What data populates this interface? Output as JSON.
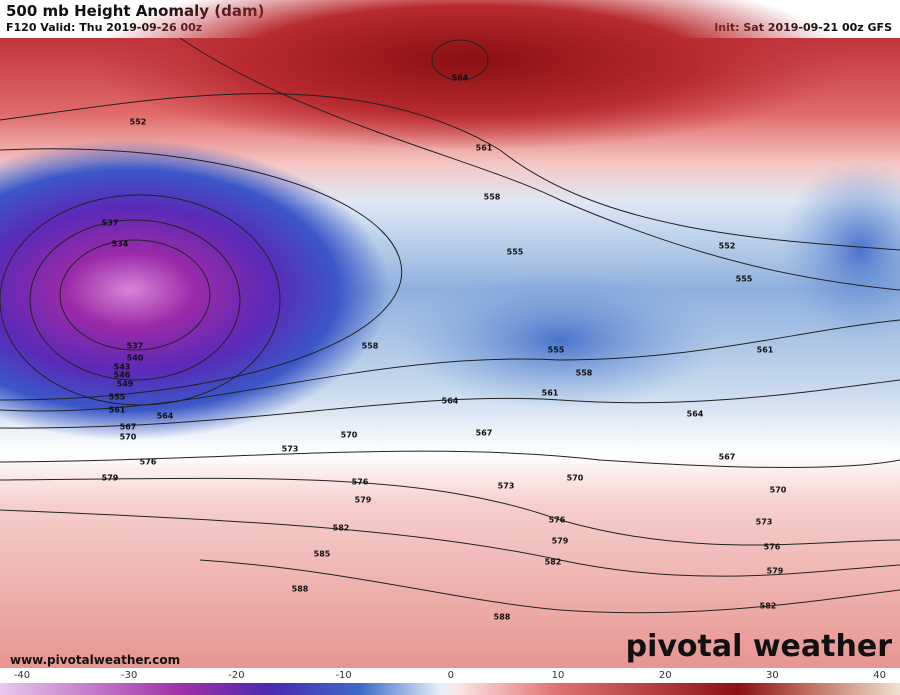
{
  "header": {
    "title": "500 mb Height Anomaly (dam)",
    "valid": "F120 Valid: Thu 2019-09-26 00z",
    "init": "Init: Sat 2019-09-21 00z GFS"
  },
  "contour_labels": [
    564,
    552,
    561,
    558,
    537,
    534,
    555,
    552,
    555,
    537,
    540,
    543,
    546,
    549,
    555,
    561,
    564,
    567,
    570,
    558,
    555,
    558,
    561,
    561,
    564,
    564,
    567,
    570,
    573,
    576,
    579,
    576,
    579,
    573,
    570,
    567,
    570,
    573,
    576,
    582,
    579,
    576,
    585,
    582,
    579,
    588,
    588,
    582
  ],
  "footer": {
    "url": "www.pivotalweather.com",
    "logo": "pivotal weather"
  },
  "colorbar": {
    "ticks": [
      -40,
      -30,
      -20,
      -10,
      0,
      10,
      20,
      30,
      40
    ]
  }
}
